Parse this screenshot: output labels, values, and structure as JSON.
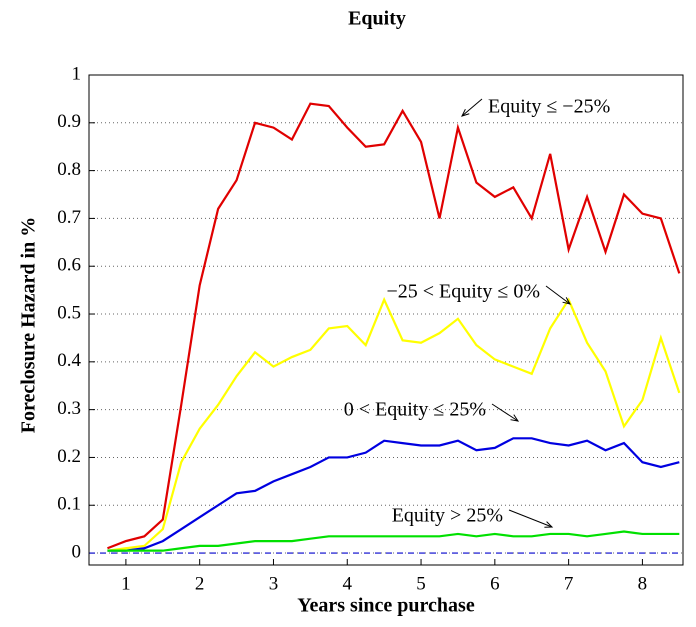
{
  "chart_data": {
    "type": "line",
    "title": "Equity",
    "xlabel": "Years since purchase",
    "ylabel": "Foreclosure Hazard in %",
    "x": [
      0.75,
      1.0,
      1.25,
      1.5,
      1.75,
      2.0,
      2.25,
      2.5,
      2.75,
      3.0,
      3.25,
      3.5,
      3.75,
      4.0,
      4.25,
      4.5,
      4.75,
      5.0,
      5.25,
      5.5,
      5.75,
      6.0,
      6.25,
      6.5,
      6.75,
      7.0,
      7.25,
      7.5,
      7.75,
      8.0,
      8.25,
      8.5
    ],
    "series": [
      {
        "name": "Equity ≤ −25%",
        "color": "#e00000",
        "values": [
          0.01,
          0.025,
          0.035,
          0.07,
          0.31,
          0.56,
          0.72,
          0.78,
          0.9,
          0.89,
          0.865,
          0.94,
          0.935,
          0.89,
          0.85,
          0.855,
          0.925,
          0.86,
          0.7,
          0.89,
          0.775,
          0.745,
          0.765,
          0.7,
          0.835,
          0.635,
          0.745,
          0.63,
          0.75,
          0.71,
          0.7,
          0.585
        ]
      },
      {
        "name": "−25 < Equity ≤ 0%",
        "color": "#ffff00",
        "values": [
          0.005,
          0.01,
          0.015,
          0.05,
          0.19,
          0.26,
          0.31,
          0.37,
          0.42,
          0.39,
          0.41,
          0.425,
          0.47,
          0.475,
          0.435,
          0.53,
          0.445,
          0.44,
          0.46,
          0.49,
          0.435,
          0.405,
          0.39,
          0.375,
          0.47,
          0.53,
          0.44,
          0.38,
          0.265,
          0.32,
          0.45,
          0.335
        ]
      },
      {
        "name": "0 < Equity ≤ 25%",
        "color": "#0000e0",
        "values": [
          0.005,
          0.005,
          0.01,
          0.025,
          0.05,
          0.075,
          0.1,
          0.125,
          0.13,
          0.15,
          0.165,
          0.18,
          0.2,
          0.2,
          0.21,
          0.235,
          0.23,
          0.225,
          0.225,
          0.235,
          0.215,
          0.22,
          0.24,
          0.24,
          0.23,
          0.225,
          0.235,
          0.215,
          0.23,
          0.19,
          0.18,
          0.19
        ]
      },
      {
        "name": "Equity > 25%",
        "color": "#00e000",
        "values": [
          0.005,
          0.005,
          0.005,
          0.005,
          0.01,
          0.015,
          0.015,
          0.02,
          0.025,
          0.025,
          0.025,
          0.03,
          0.035,
          0.035,
          0.035,
          0.035,
          0.035,
          0.035,
          0.035,
          0.04,
          0.035,
          0.04,
          0.035,
          0.035,
          0.04,
          0.04,
          0.035,
          0.04,
          0.045,
          0.04,
          0.04,
          0.04
        ]
      }
    ],
    "reference_line": {
      "value": 0,
      "color": "#0000cc",
      "style": "dashed"
    },
    "xlim": [
      0.5,
      8.55
    ],
    "xticks": [
      1,
      2,
      3,
      4,
      5,
      6,
      7,
      8
    ],
    "ylim": [
      -0.025,
      1
    ],
    "yticks": [
      0,
      0.1,
      0.2,
      0.3,
      0.4,
      0.5,
      0.6,
      0.7,
      0.8,
      0.9,
      1
    ],
    "grid": true
  }
}
